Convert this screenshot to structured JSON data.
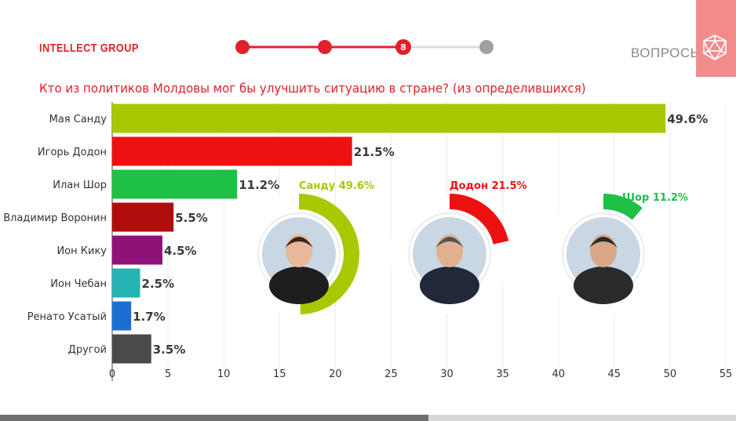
{
  "header": {
    "brand": "INTELLECT GROUP",
    "current_step": "8",
    "questions_label": "ВОПРОСЫ"
  },
  "colors": {
    "accent": "#e0202a",
    "step_inactive": "#a0a0a0"
  },
  "icons": {
    "questions": "icosahedron-icon"
  },
  "chart_data": {
    "type": "bar",
    "orientation": "horizontal",
    "title": "Кто из политиков Молдовы мог бы улучшить ситуацию в стране? (из определившихся)",
    "categories": [
      "Мая Санду",
      "Игорь Додон",
      "Илан Шор",
      "Владимир Воронин",
      "Ион Кику",
      "Ион Чебан",
      "Ренато Усатый",
      "Другой"
    ],
    "values": [
      49.6,
      21.5,
      11.2,
      5.5,
      4.5,
      2.5,
      1.7,
      3.5
    ],
    "value_labels": [
      "49.6%",
      "21.5%",
      "11.2%",
      "5.5%",
      "4.5%",
      "2.5%",
      "1.7%",
      "3.5%"
    ],
    "colors": [
      "#a8c800",
      "#ee1111",
      "#1fc046",
      "#b00d0d",
      "#8e1278",
      "#26b3b3",
      "#1c6fd0",
      "#4a4a4a"
    ],
    "xlim": [
      0,
      55
    ],
    "xticks": [
      0,
      5,
      10,
      15,
      20,
      25,
      30,
      35,
      40,
      45,
      50,
      55
    ],
    "grid": true
  },
  "portraits": [
    {
      "label": "Санду 49.6%",
      "value": 49.6,
      "color": "#a8c800"
    },
    {
      "label": "Додон 21.5%",
      "value": 21.5,
      "color": "#ee1111"
    },
    {
      "label": "Шор 11.2%",
      "value": 11.2,
      "color": "#1fc046"
    }
  ]
}
